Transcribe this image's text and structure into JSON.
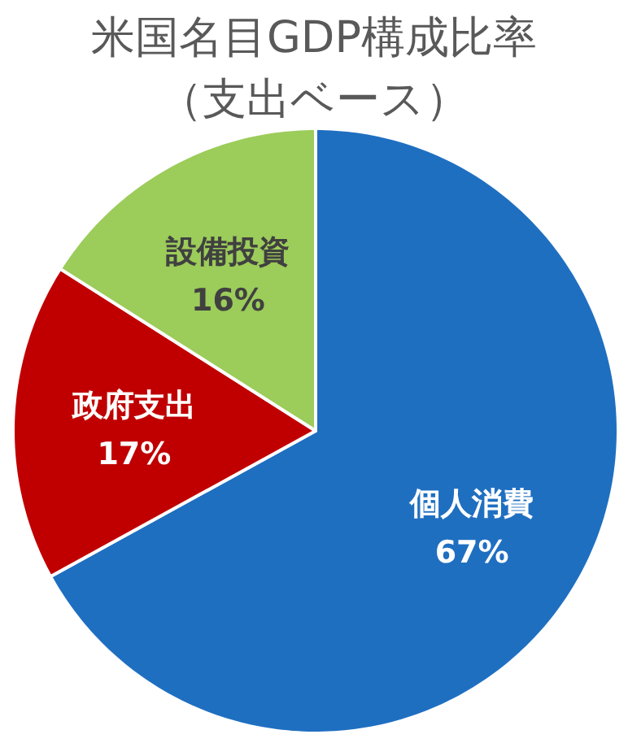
{
  "chart_data": {
    "type": "pie",
    "title": "米国名目GDP構成比率",
    "subtitle": "（支出ベース）",
    "categories": [
      "個人消費",
      "政府支出",
      "設備投資"
    ],
    "values": [
      67,
      17,
      16
    ],
    "value_labels": [
      "67%",
      "17%",
      "16%"
    ],
    "colors": [
      "#1f6fc1",
      "#c00000",
      "#9ccc5a"
    ]
  }
}
